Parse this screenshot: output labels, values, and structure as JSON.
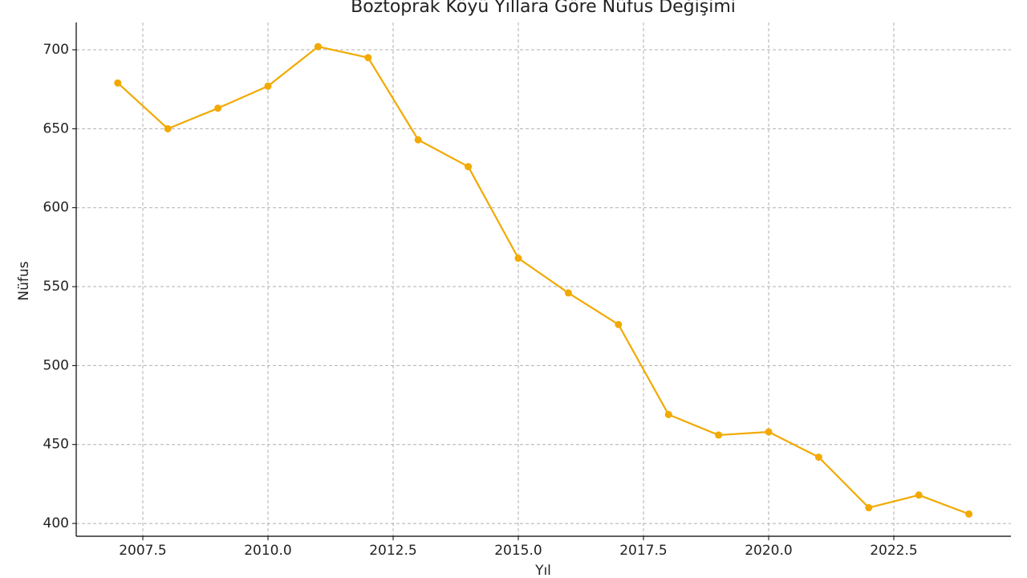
{
  "chart_data": {
    "type": "line",
    "title": "Boztoprak Köyü Yıllara Göre Nüfus Değişimi",
    "x_label": "Yıl",
    "y_label": "Nüfus",
    "x": [
      2007,
      2008,
      2009,
      2010,
      2011,
      2012,
      2013,
      2014,
      2015,
      2016,
      2017,
      2018,
      2019,
      2020,
      2021,
      2022,
      2023,
      2024
    ],
    "series": [
      {
        "color": "#f2a900",
        "values": [
          679,
          650,
          663,
          677,
          702,
          695,
          643,
          626,
          568,
          546,
          526,
          469,
          456,
          458,
          442,
          410,
          418,
          406
        ]
      }
    ],
    "xlim": [
      2006.17,
      2024.84
    ],
    "ylim": [
      391.9,
      717.3
    ],
    "xticks": [
      2007.5,
      {
        "value": 2010,
        "label": "2010.0"
      },
      2012.5,
      {
        "value": 2015,
        "label": "2015.0"
      },
      2017.5,
      {
        "value": 2020,
        "label": "2020.0"
      },
      2022.5
    ],
    "yticks": [
      400,
      450,
      500,
      550,
      600,
      650,
      700
    ],
    "grid": true
  }
}
